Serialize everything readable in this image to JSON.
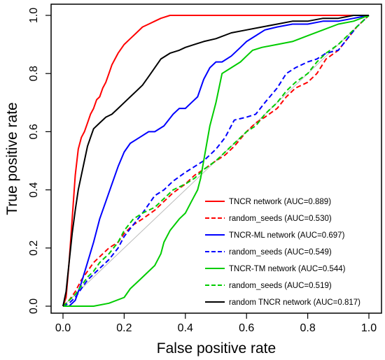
{
  "chart_data": {
    "type": "line",
    "title": "",
    "xlabel": "False positive rate",
    "ylabel": "True positive rate",
    "xlim": [
      0,
      1
    ],
    "ylim": [
      0,
      1
    ],
    "xticks": [
      "0.0",
      "0.2",
      "0.4",
      "0.6",
      "0.8",
      "1.0"
    ],
    "yticks": [
      "0.0",
      "0.2",
      "0.4",
      "0.6",
      "0.8",
      "1.0"
    ],
    "grid": false,
    "legend_position": "bottom-right",
    "series": [
      {
        "name": "TNCR network (AUC=0.889)",
        "color": "#ff0000",
        "dash": "solid",
        "x": [
          0,
          0.01,
          0.02,
          0.03,
          0.04,
          0.05,
          0.06,
          0.07,
          0.08,
          0.09,
          0.1,
          0.11,
          0.12,
          0.13,
          0.14,
          0.15,
          0.16,
          0.17,
          0.18,
          0.2,
          0.22,
          0.24,
          0.26,
          0.28,
          0.3,
          0.32,
          0.35,
          0.4,
          0.5,
          0.6,
          0.7,
          0.8,
          0.9,
          1.0
        ],
        "y": [
          0,
          0.03,
          0.15,
          0.3,
          0.45,
          0.54,
          0.58,
          0.6,
          0.63,
          0.66,
          0.68,
          0.71,
          0.72,
          0.75,
          0.77,
          0.8,
          0.83,
          0.85,
          0.87,
          0.9,
          0.92,
          0.94,
          0.96,
          0.97,
          0.98,
          0.99,
          1.0,
          1.0,
          1.0,
          1.0,
          1.0,
          1.0,
          1.0,
          1.0
        ]
      },
      {
        "name": "random_seeds (AUC=0.530)",
        "color": "#ff0000",
        "dash": "dashed",
        "x": [
          0,
          0.02,
          0.04,
          0.06,
          0.08,
          0.1,
          0.12,
          0.15,
          0.18,
          0.2,
          0.23,
          0.26,
          0.3,
          0.33,
          0.36,
          0.4,
          0.43,
          0.46,
          0.5,
          0.53,
          0.56,
          0.6,
          0.63,
          0.66,
          0.7,
          0.73,
          0.76,
          0.8,
          0.83,
          0.86,
          0.9,
          0.93,
          0.96,
          1.0
        ],
        "y": [
          0,
          0.02,
          0.05,
          0.09,
          0.12,
          0.15,
          0.17,
          0.2,
          0.22,
          0.25,
          0.28,
          0.3,
          0.33,
          0.36,
          0.39,
          0.42,
          0.45,
          0.47,
          0.5,
          0.52,
          0.55,
          0.6,
          0.63,
          0.65,
          0.68,
          0.72,
          0.75,
          0.77,
          0.8,
          0.85,
          0.88,
          0.92,
          0.96,
          1.0
        ]
      },
      {
        "name": "TNCR-ML network (AUC=0.697)",
        "color": "#0000ff",
        "dash": "solid",
        "x": [
          0,
          0.02,
          0.04,
          0.06,
          0.08,
          0.1,
          0.12,
          0.14,
          0.16,
          0.18,
          0.2,
          0.22,
          0.25,
          0.28,
          0.3,
          0.33,
          0.36,
          0.38,
          0.4,
          0.42,
          0.44,
          0.46,
          0.48,
          0.5,
          0.52,
          0.55,
          0.58,
          0.6,
          0.63,
          0.66,
          0.7,
          0.75,
          0.8,
          0.85,
          0.9,
          0.95,
          1.0
        ],
        "y": [
          0,
          0.0,
          0.02,
          0.08,
          0.15,
          0.22,
          0.3,
          0.36,
          0.42,
          0.48,
          0.53,
          0.56,
          0.58,
          0.6,
          0.6,
          0.62,
          0.66,
          0.68,
          0.68,
          0.7,
          0.72,
          0.78,
          0.82,
          0.84,
          0.84,
          0.86,
          0.89,
          0.91,
          0.93,
          0.95,
          0.96,
          0.97,
          0.97,
          0.98,
          0.98,
          0.99,
          1.0
        ]
      },
      {
        "name": "random_seeds (AUC=0.549)",
        "color": "#0000ff",
        "dash": "dashed",
        "x": [
          0,
          0.02,
          0.04,
          0.06,
          0.08,
          0.1,
          0.12,
          0.15,
          0.18,
          0.2,
          0.23,
          0.26,
          0.3,
          0.33,
          0.36,
          0.4,
          0.43,
          0.46,
          0.5,
          0.53,
          0.56,
          0.6,
          0.63,
          0.66,
          0.7,
          0.73,
          0.76,
          0.8,
          0.83,
          0.86,
          0.9,
          0.93,
          0.96,
          1.0
        ],
        "y": [
          0,
          0.01,
          0.03,
          0.06,
          0.09,
          0.11,
          0.13,
          0.16,
          0.2,
          0.24,
          0.28,
          0.32,
          0.38,
          0.4,
          0.43,
          0.46,
          0.48,
          0.5,
          0.54,
          0.58,
          0.64,
          0.65,
          0.66,
          0.7,
          0.75,
          0.8,
          0.82,
          0.84,
          0.85,
          0.87,
          0.88,
          0.92,
          0.96,
          1.0
        ]
      },
      {
        "name": "TNCR-TM network (AUC=0.544)",
        "color": "#00cc00",
        "dash": "solid",
        "x": [
          0,
          0.02,
          0.05,
          0.1,
          0.15,
          0.2,
          0.22,
          0.25,
          0.28,
          0.3,
          0.32,
          0.33,
          0.35,
          0.38,
          0.4,
          0.42,
          0.44,
          0.45,
          0.46,
          0.47,
          0.48,
          0.5,
          0.52,
          0.55,
          0.58,
          0.6,
          0.62,
          0.65,
          0.7,
          0.75,
          0.8,
          0.85,
          0.9,
          0.95,
          1.0
        ],
        "y": [
          0,
          0.0,
          0.0,
          0.0,
          0.01,
          0.03,
          0.06,
          0.09,
          0.12,
          0.14,
          0.18,
          0.22,
          0.26,
          0.3,
          0.32,
          0.36,
          0.4,
          0.44,
          0.5,
          0.56,
          0.62,
          0.7,
          0.8,
          0.82,
          0.84,
          0.86,
          0.88,
          0.89,
          0.9,
          0.91,
          0.93,
          0.95,
          0.97,
          0.98,
          1.0
        ]
      },
      {
        "name": "random_seeds (AUC=0.519)",
        "color": "#00cc00",
        "dash": "dashed",
        "x": [
          0,
          0.02,
          0.04,
          0.06,
          0.08,
          0.1,
          0.12,
          0.15,
          0.18,
          0.2,
          0.23,
          0.26,
          0.3,
          0.33,
          0.36,
          0.4,
          0.43,
          0.46,
          0.5,
          0.53,
          0.56,
          0.6,
          0.63,
          0.66,
          0.7,
          0.73,
          0.76,
          0.8,
          0.83,
          0.86,
          0.9,
          0.93,
          0.96,
          1.0
        ],
        "y": [
          0,
          0.02,
          0.04,
          0.07,
          0.1,
          0.12,
          0.15,
          0.18,
          0.22,
          0.26,
          0.3,
          0.32,
          0.34,
          0.37,
          0.4,
          0.42,
          0.44,
          0.47,
          0.5,
          0.53,
          0.56,
          0.6,
          0.62,
          0.66,
          0.7,
          0.74,
          0.77,
          0.8,
          0.84,
          0.87,
          0.9,
          0.93,
          0.96,
          1.0
        ]
      },
      {
        "name": "random TNCR network (AUC=0.817)",
        "color": "#000000",
        "dash": "solid",
        "x": [
          0,
          0.01,
          0.02,
          0.03,
          0.04,
          0.05,
          0.06,
          0.07,
          0.08,
          0.09,
          0.1,
          0.12,
          0.14,
          0.16,
          0.18,
          0.2,
          0.22,
          0.24,
          0.26,
          0.28,
          0.3,
          0.32,
          0.35,
          0.38,
          0.4,
          0.43,
          0.46,
          0.5,
          0.55,
          0.6,
          0.65,
          0.7,
          0.75,
          0.8,
          0.85,
          0.9,
          0.95,
          1.0
        ],
        "y": [
          0,
          0.05,
          0.15,
          0.25,
          0.33,
          0.4,
          0.45,
          0.5,
          0.55,
          0.58,
          0.61,
          0.63,
          0.65,
          0.66,
          0.68,
          0.7,
          0.72,
          0.74,
          0.76,
          0.79,
          0.82,
          0.85,
          0.87,
          0.88,
          0.89,
          0.9,
          0.91,
          0.92,
          0.94,
          0.95,
          0.96,
          0.97,
          0.98,
          0.98,
          0.99,
          0.99,
          1.0,
          1.0
        ]
      }
    ]
  }
}
